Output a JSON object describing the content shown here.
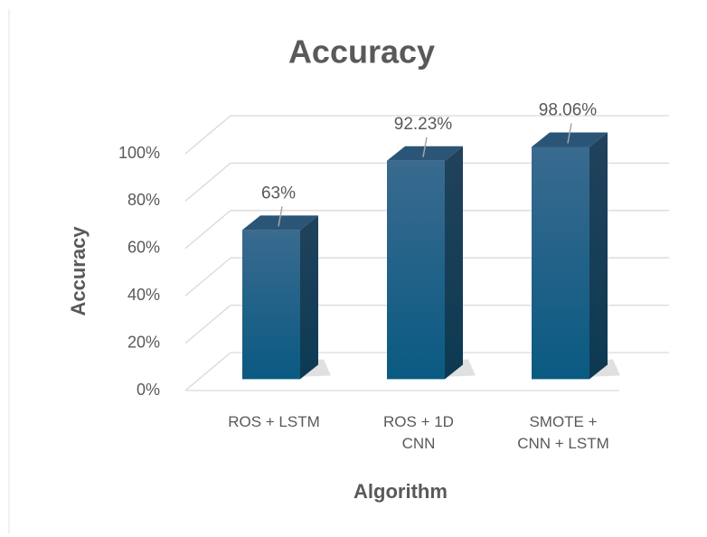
{
  "chart_data": {
    "type": "bar3d",
    "title": "Accuracy",
    "x_label": "Algorithm",
    "y_label": "Accuracy",
    "categories": [
      "ROS + LSTM",
      "ROS + 1D CNN",
      "SMOTE + CNN + LSTM"
    ],
    "values": [
      63,
      92.23,
      98.06
    ],
    "value_labels": [
      "63%",
      "92.23%",
      "98.06%"
    ],
    "color": "#125f86",
    "ylim": [
      0,
      100
    ],
    "yticks": [
      {
        "value": 0,
        "label": "0%"
      },
      {
        "value": 20,
        "label": "20%"
      },
      {
        "value": 40,
        "label": "40%"
      },
      {
        "value": 60,
        "label": "60%"
      },
      {
        "value": 80,
        "label": "80%"
      },
      {
        "value": 100,
        "label": "100%"
      }
    ],
    "grid": true
  }
}
